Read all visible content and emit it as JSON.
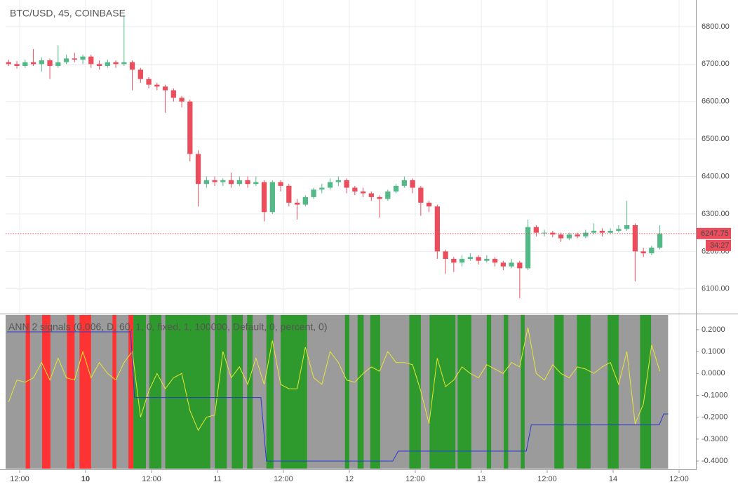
{
  "chart_data": [
    {
      "type": "candlestick",
      "title": "BTC/USD, 45, COINBASE",
      "xlim": [
        -14.55,
        111.06
      ],
      "xticks": [
        -12,
        0,
        12,
        24,
        36,
        48,
        60,
        72,
        84,
        96,
        108
      ],
      "ylim": [
        6034,
        6871
      ],
      "yticks": [
        {
          "value": 6100,
          "label": "6100.00"
        },
        {
          "value": 6200,
          "label": "6200.00"
        },
        {
          "value": 6300,
          "label": "6300.00"
        },
        {
          "value": 6400,
          "label": "6400.00"
        },
        {
          "value": 6500,
          "label": "6500.00"
        },
        {
          "value": 6600,
          "label": "6600.00"
        },
        {
          "value": 6700,
          "label": "6700.00"
        },
        {
          "value": 6800,
          "label": "6800.00"
        }
      ],
      "grid": true,
      "up_color": "#53b987",
      "down_color": "#eb4d5c",
      "countdown": "34:27",
      "x": [
        -14,
        -12.5,
        -11,
        -9.5,
        -8,
        -6.5,
        -5,
        -3.5,
        -2,
        -0.5,
        1,
        2.5,
        4,
        5.5,
        7,
        8.5,
        10,
        11.5,
        13,
        14.5,
        16,
        17.5,
        19,
        20.5,
        22,
        23.5,
        25,
        26.5,
        28,
        29.5,
        31,
        32.5,
        34,
        35.5,
        37,
        38.5,
        40,
        41.5,
        43,
        44.5,
        46,
        47.5,
        49,
        50.5,
        52,
        53.5,
        55,
        56.5,
        58,
        59.5,
        61,
        62.5,
        64,
        65.5,
        67,
        68.5,
        70,
        71.5,
        73,
        74.5,
        76,
        77.5,
        79,
        80.5,
        82,
        83.5,
        85,
        86.5,
        88,
        89.5,
        91,
        92.5,
        94,
        95.5,
        97,
        98.5,
        100,
        101.5,
        103,
        104.5
      ],
      "candles": [
        [
          6705,
          6712,
          6695,
          6700
        ],
        [
          6700,
          6708,
          6688,
          6695
        ],
        [
          6695,
          6712,
          6690,
          6705
        ],
        [
          6705,
          6740,
          6695,
          6700
        ],
        [
          6700,
          6718,
          6680,
          6710
        ],
        [
          6710,
          6715,
          6660,
          6695
        ],
        [
          6695,
          6750,
          6690,
          6705
        ],
        [
          6705,
          6725,
          6700,
          6715
        ],
        [
          6715,
          6730,
          6705,
          6712
        ],
        [
          6712,
          6725,
          6700,
          6720
        ],
        [
          6720,
          6725,
          6690,
          6700
        ],
        [
          6700,
          6710,
          6685,
          6695
        ],
        [
          6695,
          6712,
          6690,
          6705
        ],
        [
          6705,
          6710,
          6690,
          6700
        ],
        [
          6700,
          6830,
          6695,
          6705
        ],
        [
          6705,
          6710,
          6630,
          6685
        ],
        [
          6685,
          6690,
          6650,
          6660
        ],
        [
          6660,
          6665,
          6635,
          6645
        ],
        [
          6645,
          6650,
          6630,
          6640
        ],
        [
          6640,
          6645,
          6570,
          6630
        ],
        [
          6630,
          6635,
          6600,
          6610
        ],
        [
          6610,
          6615,
          6585,
          6600
        ],
        [
          6600,
          6605,
          6440,
          6460
        ],
        [
          6460,
          6470,
          6320,
          6380
        ],
        [
          6380,
          6400,
          6370,
          6390
        ],
        [
          6390,
          6400,
          6375,
          6385
        ],
        [
          6385,
          6395,
          6375,
          6390
        ],
        [
          6390,
          6410,
          6370,
          6380
        ],
        [
          6380,
          6400,
          6375,
          6390
        ],
        [
          6390,
          6400,
          6370,
          6380
        ],
        [
          6380,
          6400,
          6375,
          6385
        ],
        [
          6385,
          6390,
          6280,
          6305
        ],
        [
          6305,
          6390,
          6300,
          6385
        ],
        [
          6385,
          6390,
          6360,
          6375
        ],
        [
          6375,
          6380,
          6320,
          6330
        ],
        [
          6330,
          6340,
          6285,
          6325
        ],
        [
          6325,
          6350,
          6320,
          6345
        ],
        [
          6345,
          6370,
          6340,
          6365
        ],
        [
          6365,
          6380,
          6355,
          6370
        ],
        [
          6370,
          6395,
          6365,
          6385
        ],
        [
          6385,
          6400,
          6375,
          6390
        ],
        [
          6390,
          6395,
          6355,
          6370
        ],
        [
          6370,
          6375,
          6350,
          6360
        ],
        [
          6360,
          6370,
          6345,
          6355
        ],
        [
          6355,
          6360,
          6335,
          6345
        ],
        [
          6345,
          6350,
          6290,
          6340
        ],
        [
          6340,
          6365,
          6335,
          6360
        ],
        [
          6360,
          6380,
          6355,
          6375
        ],
        [
          6375,
          6400,
          6370,
          6390
        ],
        [
          6390,
          6395,
          6355,
          6370
        ],
        [
          6370,
          6375,
          6295,
          6330
        ],
        [
          6330,
          6335,
          6305,
          6320
        ],
        [
          6320,
          6325,
          6180,
          6200
        ],
        [
          6200,
          6205,
          6140,
          6180
        ],
        [
          6180,
          6185,
          6145,
          6170
        ],
        [
          6170,
          6190,
          6160,
          6180
        ],
        [
          6180,
          6195,
          6175,
          6185
        ],
        [
          6185,
          6190,
          6165,
          6175
        ],
        [
          6175,
          6190,
          6170,
          6180
        ],
        [
          6180,
          6185,
          6160,
          6170
        ],
        [
          6170,
          6175,
          6150,
          6160
        ],
        [
          6160,
          6180,
          6155,
          6170
        ],
        [
          6170,
          6175,
          6075,
          6155
        ],
        [
          6155,
          6285,
          6150,
          6265
        ],
        [
          6265,
          6270,
          6240,
          6250
        ],
        [
          6250,
          6258,
          6240,
          6250
        ],
        [
          6250,
          6255,
          6238,
          6245
        ],
        [
          6245,
          6250,
          6225,
          6235
        ],
        [
          6235,
          6250,
          6230,
          6245
        ],
        [
          6245,
          6250,
          6235,
          6240
        ],
        [
          6240,
          6258,
          6235,
          6250
        ],
        [
          6250,
          6275,
          6245,
          6255
        ],
        [
          6255,
          6262,
          6240,
          6250
        ],
        [
          6250,
          6262,
          6245,
          6255
        ],
        [
          6255,
          6270,
          6250,
          6260
        ],
        [
          6260,
          6335,
          6255,
          6270
        ],
        [
          6270,
          6275,
          6120,
          6200
        ],
        [
          6200,
          6210,
          6185,
          6195
        ],
        [
          6195,
          6215,
          6190,
          6210
        ],
        [
          6210,
          6270,
          6205,
          6247.75
        ]
      ]
    },
    {
      "type": "signals",
      "title": "ANN 2 signals (0.006, D, 60, 1, 0, fixed, 1, 100000, Default, 0, percent, 0)",
      "xlim": [
        -14.55,
        111.06
      ],
      "xticks": [
        {
          "value": -12,
          "label": "12:00"
        },
        0,
        {
          "value": 12,
          "label": "12:00"
        },
        {
          "value": 24,
          "label": "11"
        },
        {
          "value": 36,
          "label": "12:00"
        },
        {
          "value": 48,
          "label": "12"
        },
        {
          "value": 60,
          "label": "12:00"
        },
        {
          "value": 72,
          "label": "13"
        },
        {
          "value": 84,
          "label": "12:00"
        },
        {
          "value": 96,
          "label": "14"
        },
        {
          "value": 108,
          "label": "12:00"
        }
      ],
      "xtick_zero_label": "10",
      "ylim": [
        -0.435,
        0.267
      ],
      "yticks": [
        {
          "value": 0.2,
          "label": "0.2000"
        },
        {
          "value": 0.1,
          "label": "0.1000"
        },
        {
          "value": 0,
          "label": "0.0000"
        },
        {
          "value": -0.1,
          "label": "-0.1000"
        },
        {
          "value": -0.2,
          "label": "-0.2000"
        },
        {
          "value": -0.3,
          "label": "-0.3000"
        },
        {
          "value": -0.4,
          "label": "-0.4000"
        }
      ],
      "background": {
        "x": [
          -14.55,
          106
        ],
        "color": "#9b9b9b"
      },
      "zones": [
        {
          "x": [
            -10.9,
            -10.1
          ],
          "color": "#ff3333"
        },
        {
          "x": [
            -7.9,
            -6.4
          ],
          "color": "#ff3333"
        },
        {
          "x": [
            -3.4,
            -2.0
          ],
          "color": "#ff3333"
        },
        {
          "x": [
            -1.1,
            1.0
          ],
          "color": "#ff3333"
        },
        {
          "x": [
            4.9,
            5.6
          ],
          "color": "#ff3333"
        },
        {
          "x": [
            7.8,
            8.7
          ],
          "color": "#ff3333"
        },
        {
          "x": [
            8.7,
            10.98
          ],
          "color": "#2e9a2e"
        },
        {
          "x": [
            11.6,
            13.8
          ],
          "color": "#2e9a2e"
        },
        {
          "x": [
            14.5,
            22.7
          ],
          "color": "#2e9a2e"
        },
        {
          "x": [
            23.5,
            25.7
          ],
          "color": "#2e9a2e"
        },
        {
          "x": [
            26.6,
            28.6
          ],
          "color": "#2e9a2e"
        },
        {
          "x": [
            29.4,
            30.4
          ],
          "color": "#2e9a2e"
        },
        {
          "x": [
            32.9,
            34.2
          ],
          "color": "#2e9a2e"
        },
        {
          "x": [
            35.5,
            40.3
          ],
          "color": "#2e9a2e"
        },
        {
          "x": [
            47.2,
            48.0
          ],
          "color": "#2e9a2e"
        },
        {
          "x": [
            49.5,
            50.6
          ],
          "color": "#2e9a2e"
        },
        {
          "x": [
            51.8,
            53.6
          ],
          "color": "#2e9a2e"
        },
        {
          "x": [
            58.9,
            61.0
          ],
          "color": "#2e9a2e"
        },
        {
          "x": [
            62.6,
            67.3
          ],
          "color": "#2e9a2e"
        },
        {
          "x": [
            67.7,
            70.2
          ],
          "color": "#2e9a2e"
        },
        {
          "x": [
            73.0,
            73.8
          ],
          "color": "#2e9a2e"
        },
        {
          "x": [
            76.1,
            76.9
          ],
          "color": "#2e9a2e"
        },
        {
          "x": [
            79.2,
            79.9
          ],
          "color": "#2e9a2e"
        },
        {
          "x": [
            85.3,
            87.0
          ],
          "color": "#2e9a2e"
        },
        {
          "x": [
            89.4,
            91.9
          ],
          "color": "#2e9a2e"
        },
        {
          "x": [
            95.0,
            97.0
          ],
          "color": "#2e9a2e"
        },
        {
          "x": [
            100.9,
            102.9
          ],
          "color": "#2e9a2e"
        }
      ],
      "lines": [
        {
          "color": "#e6e633",
          "x": [
            -14,
            -12.5,
            -11,
            -9.5,
            -8,
            -6.5,
            -5,
            -3.5,
            -2,
            -0.5,
            1,
            2.5,
            4,
            5.5,
            7,
            8.5,
            10,
            11.5,
            13,
            14.5,
            16,
            17.5,
            19,
            20.5,
            22,
            23.5,
            25,
            26.5,
            28,
            29.5,
            31,
            32.5,
            34,
            35.5,
            37,
            38.5,
            40,
            41.5,
            43,
            44.5,
            46,
            47.5,
            49,
            50.5,
            52,
            53.5,
            55,
            56.5,
            58,
            59.5,
            61,
            62.5,
            64,
            65.5,
            67,
            68.5,
            70,
            71.5,
            73,
            74.5,
            76,
            77.5,
            79,
            80.5,
            82,
            83.5,
            85,
            86.5,
            88,
            89.5,
            91,
            92.5,
            94,
            95.5,
            97,
            98.5,
            100,
            101.5,
            103,
            104.5
          ],
          "values": [
            -0.13,
            -0.03,
            -0.04,
            -0.02,
            0.05,
            -0.03,
            0.07,
            -0.02,
            -0.03,
            0.1,
            -0.02,
            0.05,
            0.0,
            -0.03,
            0.05,
            0.1,
            -0.2,
            -0.08,
            0.0,
            -0.07,
            -0.02,
            0.0,
            -0.17,
            -0.26,
            -0.2,
            -0.19,
            0.1,
            -0.02,
            0.03,
            -0.05,
            0.07,
            -0.05,
            0.15,
            -0.05,
            -0.07,
            -0.07,
            0.12,
            -0.02,
            -0.05,
            0.1,
            0.05,
            -0.03,
            -0.04,
            0.0,
            0.03,
            0.01,
            0.1,
            0.05,
            0.05,
            0.04,
            -0.08,
            -0.23,
            0.07,
            -0.06,
            -0.03,
            0.03,
            0.0,
            -0.02,
            0.04,
            0.02,
            0.0,
            0.05,
            0.03,
            0.21,
            0.0,
            -0.03,
            0.04,
            0.0,
            -0.02,
            0.03,
            0.02,
            0.0,
            0.03,
            0.05,
            -0.05,
            0.1,
            -0.23,
            -0.14,
            0.13,
            0.01
          ]
        },
        {
          "color": "#2a3ad0",
          "x": [
            -14.3,
            8.2,
            8.9,
            31.9,
            32.9,
            55.9,
            56.9,
            80.2,
            81.1,
            104.4,
            105.2,
            106
          ],
          "values": [
            0.19,
            0.19,
            -0.11,
            -0.11,
            -0.4,
            -0.4,
            -0.355,
            -0.355,
            -0.235,
            -0.235,
            -0.185,
            -0.185
          ]
        }
      ]
    }
  ]
}
